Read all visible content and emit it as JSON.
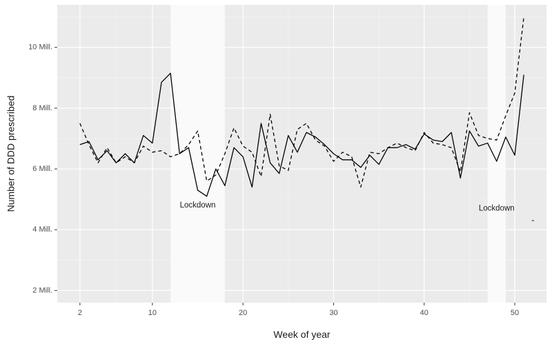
{
  "chart_data": {
    "type": "line",
    "xlabel": "Week of year",
    "ylabel": "Number of DDD prescribed",
    "xlim": [
      -0.5,
      53.5
    ],
    "ylim": [
      1.6,
      11.4
    ],
    "x_ticks": [
      2,
      10,
      20,
      30,
      40,
      50
    ],
    "x_tick_labels": [
      "2",
      "10",
      "20",
      "30",
      "40",
      "50"
    ],
    "x_minor_ticks": [
      6,
      15,
      25,
      35,
      45
    ],
    "y_ticks": [
      2,
      4,
      6,
      8,
      10
    ],
    "y_tick_labels": [
      "2 Mill.",
      "4 Mill.",
      "6 Mill.",
      "8 Mill.",
      "10 Mill."
    ],
    "y_minor_ticks": [
      3,
      5,
      7,
      9,
      11
    ],
    "grid": true,
    "shaded_periods": [
      {
        "start": 12,
        "end": 18,
        "label": "Lockdown",
        "label_x": 15,
        "label_y": 4.8
      },
      {
        "start": 47,
        "end": 49,
        "label": "Lockdown",
        "label_x": 48,
        "label_y": 4.7
      }
    ],
    "series": [
      {
        "style": "solid",
        "x": [
          2,
          3,
          4,
          5,
          6,
          7,
          8,
          9,
          10,
          11,
          12,
          13,
          14,
          15,
          16,
          17,
          18,
          19,
          20,
          21,
          22,
          23,
          24,
          25,
          26,
          27,
          28,
          29,
          30,
          31,
          32,
          33,
          34,
          35,
          36,
          37,
          38,
          39,
          40,
          41,
          42,
          43,
          44,
          45,
          46,
          47,
          48,
          49,
          50,
          51
        ],
        "values": [
          6.8,
          6.9,
          6.3,
          6.6,
          6.2,
          6.5,
          6.2,
          7.1,
          6.85,
          8.85,
          9.15,
          6.5,
          6.7,
          5.3,
          5.1,
          6.0,
          5.45,
          6.7,
          6.4,
          5.4,
          7.5,
          6.2,
          5.85,
          7.1,
          6.55,
          7.2,
          7.05,
          6.8,
          6.5,
          6.3,
          6.3,
          6.05,
          6.45,
          6.15,
          6.7,
          6.7,
          6.8,
          6.65,
          7.15,
          6.95,
          6.9,
          7.2,
          5.7,
          7.25,
          6.75,
          6.85,
          6.25,
          7.05,
          6.45,
          9.1
        ]
      },
      {
        "style": "dashed",
        "x": [
          2,
          3,
          4,
          5,
          6,
          7,
          8,
          9,
          10,
          11,
          12,
          13,
          14,
          15,
          16,
          17,
          18,
          19,
          20,
          21,
          22,
          23,
          24,
          25,
          26,
          27,
          28,
          29,
          30,
          31,
          32,
          33,
          34,
          35,
          36,
          37,
          38,
          39,
          40,
          41,
          42,
          43,
          44,
          45,
          46,
          47,
          48,
          49,
          50,
          51
        ],
        "values": [
          7.5,
          6.8,
          6.2,
          6.7,
          6.2,
          6.4,
          6.2,
          6.75,
          6.55,
          6.6,
          6.4,
          6.5,
          6.8,
          7.25,
          5.6,
          5.8,
          6.5,
          7.35,
          6.75,
          6.55,
          5.75,
          7.8,
          6.1,
          5.95,
          7.3,
          7.5,
          6.95,
          6.75,
          6.25,
          6.55,
          6.4,
          5.4,
          6.55,
          6.5,
          6.7,
          6.85,
          6.7,
          6.6,
          7.2,
          6.85,
          6.8,
          6.7,
          5.9,
          7.85,
          7.1,
          7.0,
          6.95,
          7.75,
          8.5,
          11.0
        ]
      }
    ],
    "stray_marks": [
      {
        "x": 52,
        "y": 4.3
      }
    ]
  },
  "colors": {
    "panel": "#ebebeb",
    "grid_major": "#ffffff",
    "shade": "#fafafa",
    "line": "#000000"
  }
}
